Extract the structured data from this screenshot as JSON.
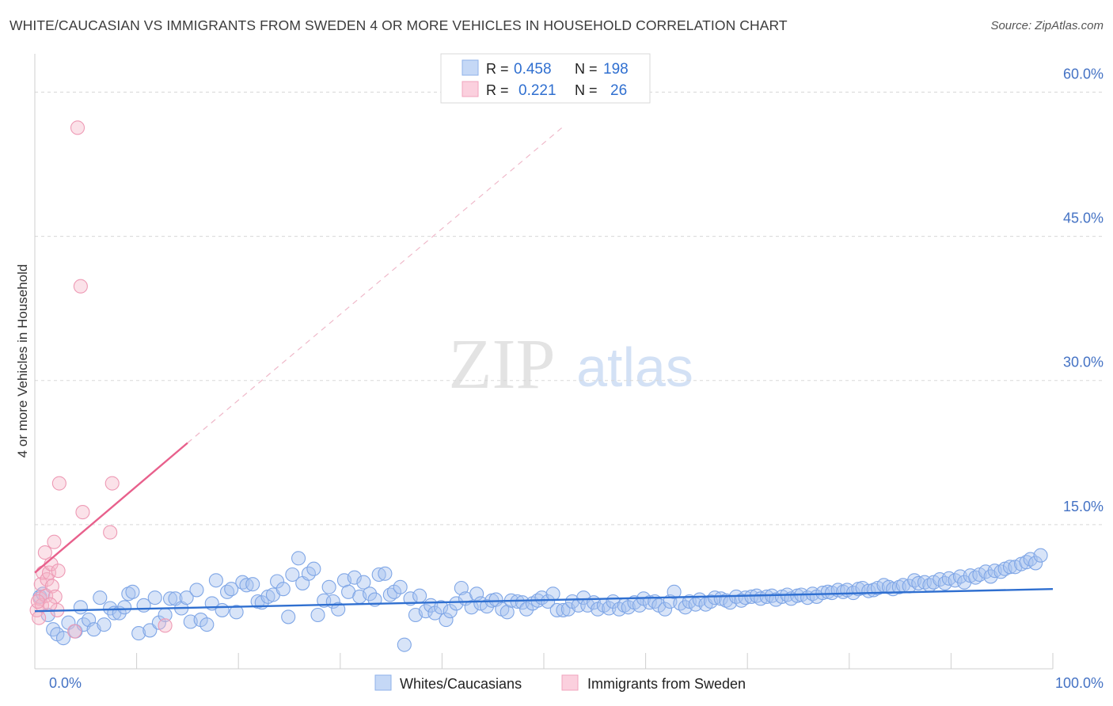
{
  "header": {
    "title": "WHITE/CAUCASIAN VS IMMIGRANTS FROM SWEDEN 4 OR MORE VEHICLES IN HOUSEHOLD CORRELATION CHART",
    "source": "Source: ZipAtlas.com"
  },
  "watermark": {
    "zip": "ZIP",
    "atlas": "atlas"
  },
  "legend": {
    "rows": [
      {
        "r_label": "R =",
        "r_value": "0.458",
        "n_label": "N =",
        "n_value": "198",
        "color": "#a9c4f0"
      },
      {
        "r_label": "R =",
        "r_value": "0.221",
        "n_label": "N =",
        "n_value": "26",
        "color": "#f6b6c8"
      }
    ]
  },
  "bottom_legend": {
    "items": [
      {
        "label": "Whites/Caucasians",
        "color": "#a9c4f0"
      },
      {
        "label": "Immigrants from Sweden",
        "color": "#f6b6c8"
      }
    ]
  },
  "chart_data": {
    "type": "scatter",
    "title": "WHITE/CAUCASIAN VS IMMIGRANTS FROM SWEDEN 4 OR MORE VEHICLES IN HOUSEHOLD CORRELATION CHART",
    "xlabel": "",
    "ylabel": "4 or more Vehicles in Household",
    "xlim": [
      0,
      100
    ],
    "ylim": [
      0,
      63
    ],
    "x_tick_labels": [
      "0.0%",
      "100.0%"
    ],
    "y_ticks": [
      15,
      30,
      45,
      60
    ],
    "y_tick_labels": [
      "15.0%",
      "30.0%",
      "45.0%",
      "60.0%"
    ],
    "grid": true,
    "legend_position": "top-center",
    "series": [
      {
        "name": "Whites/Caucasians",
        "color": "#8fb2ea",
        "line_color": "#2f6fd0",
        "trend": {
          "x": [
            0,
            100
          ],
          "y": [
            6.0,
            8.3
          ]
        },
        "points": [
          [
            0.5,
            7.5
          ],
          [
            0.8,
            7.8
          ],
          [
            1.3,
            5.6
          ],
          [
            1.8,
            4.1
          ],
          [
            2.2,
            3.6
          ],
          [
            2.8,
            3.2
          ],
          [
            3.3,
            4.8
          ],
          [
            4.0,
            3.9
          ],
          [
            4.5,
            6.4
          ],
          [
            4.8,
            4.6
          ],
          [
            5.3,
            5.1
          ],
          [
            5.8,
            4.1
          ],
          [
            6.4,
            7.4
          ],
          [
            6.8,
            4.6
          ],
          [
            7.4,
            6.3
          ],
          [
            7.8,
            5.8
          ],
          [
            8.3,
            5.8
          ],
          [
            8.8,
            6.4
          ],
          [
            9.2,
            7.8
          ],
          [
            9.6,
            8.0
          ],
          [
            10.2,
            3.7
          ],
          [
            10.7,
            6.6
          ],
          [
            11.3,
            4.0
          ],
          [
            11.8,
            7.4
          ],
          [
            12.2,
            4.8
          ],
          [
            12.8,
            5.6
          ],
          [
            13.3,
            7.3
          ],
          [
            13.8,
            7.3
          ],
          [
            14.4,
            6.3
          ],
          [
            14.9,
            7.4
          ],
          [
            15.3,
            4.9
          ],
          [
            15.9,
            8.2
          ],
          [
            16.3,
            5.1
          ],
          [
            16.9,
            4.6
          ],
          [
            17.4,
            6.8
          ],
          [
            17.8,
            9.2
          ],
          [
            18.4,
            6.1
          ],
          [
            18.9,
            8.0
          ],
          [
            19.3,
            8.3
          ],
          [
            19.8,
            5.9
          ],
          [
            20.4,
            9.0
          ],
          [
            20.8,
            8.7
          ],
          [
            21.4,
            8.8
          ],
          [
            21.9,
            7.0
          ],
          [
            22.3,
            6.9
          ],
          [
            22.9,
            7.5
          ],
          [
            23.4,
            7.7
          ],
          [
            23.8,
            9.1
          ],
          [
            24.4,
            8.3
          ],
          [
            24.9,
            5.4
          ],
          [
            25.3,
            9.8
          ],
          [
            25.9,
            11.5
          ],
          [
            26.3,
            8.9
          ],
          [
            26.9,
            9.9
          ],
          [
            27.4,
            10.4
          ],
          [
            27.8,
            5.6
          ],
          [
            28.4,
            7.1
          ],
          [
            28.9,
            8.5
          ],
          [
            29.3,
            7.0
          ],
          [
            29.8,
            6.2
          ],
          [
            30.4,
            9.2
          ],
          [
            30.8,
            8.0
          ],
          [
            31.4,
            9.5
          ],
          [
            31.9,
            7.5
          ],
          [
            32.3,
            9.0
          ],
          [
            32.9,
            7.8
          ],
          [
            33.4,
            7.2
          ],
          [
            33.8,
            9.8
          ],
          [
            34.4,
            9.9
          ],
          [
            34.9,
            7.7
          ],
          [
            35.3,
            8.0
          ],
          [
            35.9,
            8.5
          ],
          [
            36.3,
            2.5
          ],
          [
            36.9,
            7.3
          ],
          [
            37.4,
            5.6
          ],
          [
            37.8,
            7.6
          ],
          [
            38.4,
            6.0
          ],
          [
            38.9,
            6.6
          ],
          [
            39.3,
            5.8
          ],
          [
            39.9,
            6.4
          ],
          [
            40.4,
            5.1
          ],
          [
            40.8,
            6.0
          ],
          [
            41.4,
            6.8
          ],
          [
            41.9,
            8.4
          ],
          [
            42.3,
            7.3
          ],
          [
            42.9,
            6.4
          ],
          [
            43.4,
            7.8
          ],
          [
            43.8,
            6.8
          ],
          [
            44.4,
            6.5
          ],
          [
            44.9,
            7.1
          ],
          [
            45.3,
            7.2
          ],
          [
            45.9,
            6.2
          ],
          [
            46.4,
            5.9
          ],
          [
            46.8,
            7.1
          ],
          [
            47.4,
            7.0
          ],
          [
            47.9,
            6.9
          ],
          [
            48.3,
            6.2
          ],
          [
            48.9,
            6.8
          ],
          [
            49.4,
            7.1
          ],
          [
            49.8,
            7.4
          ],
          [
            50.4,
            7.0
          ],
          [
            50.9,
            7.8
          ],
          [
            51.3,
            6.1
          ],
          [
            51.9,
            6.1
          ],
          [
            52.4,
            6.2
          ],
          [
            52.8,
            7.0
          ],
          [
            53.4,
            6.6
          ],
          [
            53.9,
            7.4
          ],
          [
            54.3,
            6.6
          ],
          [
            54.9,
            6.9
          ],
          [
            55.3,
            6.2
          ],
          [
            55.9,
            6.6
          ],
          [
            56.4,
            6.3
          ],
          [
            56.8,
            7.0
          ],
          [
            57.4,
            6.2
          ],
          [
            57.9,
            6.6
          ],
          [
            58.3,
            6.4
          ],
          [
            58.9,
            6.9
          ],
          [
            59.4,
            6.6
          ],
          [
            59.8,
            7.3
          ],
          [
            60.4,
            6.9
          ],
          [
            60.9,
            7.0
          ],
          [
            61.3,
            6.6
          ],
          [
            61.9,
            6.2
          ],
          [
            62.4,
            7.0
          ],
          [
            62.8,
            8.0
          ],
          [
            63.4,
            6.8
          ],
          [
            63.9,
            6.4
          ],
          [
            64.3,
            7.0
          ],
          [
            64.9,
            6.7
          ],
          [
            65.3,
            7.2
          ],
          [
            65.9,
            6.7
          ],
          [
            66.4,
            7.0
          ],
          [
            66.8,
            7.4
          ],
          [
            67.4,
            7.3
          ],
          [
            67.9,
            7.1
          ],
          [
            68.3,
            6.9
          ],
          [
            68.9,
            7.5
          ],
          [
            69.4,
            7.1
          ],
          [
            69.8,
            7.4
          ],
          [
            70.4,
            7.5
          ],
          [
            70.9,
            7.6
          ],
          [
            71.3,
            7.3
          ],
          [
            71.9,
            7.5
          ],
          [
            72.4,
            7.6
          ],
          [
            72.8,
            7.2
          ],
          [
            73.4,
            7.5
          ],
          [
            73.9,
            7.7
          ],
          [
            74.3,
            7.3
          ],
          [
            74.9,
            7.6
          ],
          [
            75.3,
            7.7
          ],
          [
            75.9,
            7.4
          ],
          [
            76.4,
            7.8
          ],
          [
            76.8,
            7.5
          ],
          [
            77.4,
            7.9
          ],
          [
            77.9,
            8.0
          ],
          [
            78.3,
            7.9
          ],
          [
            78.9,
            8.2
          ],
          [
            79.4,
            8.0
          ],
          [
            79.8,
            8.2
          ],
          [
            80.4,
            7.9
          ],
          [
            80.9,
            8.3
          ],
          [
            81.3,
            8.4
          ],
          [
            81.9,
            8.1
          ],
          [
            82.4,
            8.2
          ],
          [
            82.8,
            8.4
          ],
          [
            83.4,
            8.7
          ],
          [
            83.9,
            8.5
          ],
          [
            84.3,
            8.3
          ],
          [
            84.9,
            8.5
          ],
          [
            85.3,
            8.7
          ],
          [
            85.9,
            8.6
          ],
          [
            86.4,
            9.2
          ],
          [
            86.8,
            8.9
          ],
          [
            87.4,
            9.0
          ],
          [
            87.9,
            8.7
          ],
          [
            88.3,
            9.0
          ],
          [
            88.9,
            9.3
          ],
          [
            89.4,
            8.9
          ],
          [
            89.8,
            9.4
          ],
          [
            90.4,
            9.2
          ],
          [
            90.9,
            9.6
          ],
          [
            91.3,
            9.0
          ],
          [
            91.9,
            9.7
          ],
          [
            92.4,
            9.5
          ],
          [
            92.8,
            9.8
          ],
          [
            93.4,
            10.1
          ],
          [
            93.9,
            9.6
          ],
          [
            94.3,
            10.2
          ],
          [
            94.9,
            10.1
          ],
          [
            95.3,
            10.4
          ],
          [
            95.8,
            10.6
          ],
          [
            96.3,
            10.6
          ],
          [
            96.9,
            10.9
          ],
          [
            97.4,
            11.1
          ],
          [
            97.8,
            11.4
          ],
          [
            98.3,
            11.0
          ],
          [
            98.8,
            11.8
          ]
        ]
      },
      {
        "name": "Immigrants from Sweden",
        "color": "#f2a3bd",
        "line_color": "#e8608c",
        "trend": {
          "x": [
            0,
            15
          ],
          "y": [
            10.0,
            23.5
          ]
        },
        "trend_extension": {
          "x": [
            15,
            52
          ],
          "y": [
            23.5,
            56.5
          ]
        },
        "points": [
          [
            0.2,
            6.1
          ],
          [
            0.4,
            5.3
          ],
          [
            0.5,
            7.3
          ],
          [
            0.6,
            8.8
          ],
          [
            0.7,
            6.6
          ],
          [
            0.8,
            10.0
          ],
          [
            1.0,
            12.1
          ],
          [
            1.1,
            7.6
          ],
          [
            1.2,
            9.3
          ],
          [
            1.4,
            10.0
          ],
          [
            1.6,
            10.9
          ],
          [
            1.7,
            8.6
          ],
          [
            1.9,
            13.2
          ],
          [
            2.0,
            7.5
          ],
          [
            2.2,
            6.1
          ],
          [
            2.3,
            10.2
          ],
          [
            2.4,
            19.3
          ],
          [
            3.9,
            3.9
          ],
          [
            4.2,
            56.3
          ],
          [
            4.5,
            39.8
          ],
          [
            4.7,
            16.3
          ],
          [
            7.4,
            14.2
          ],
          [
            7.6,
            19.3
          ],
          [
            12.8,
            4.5
          ],
          [
            0.3,
            7.0
          ],
          [
            1.5,
            6.7
          ]
        ]
      }
    ]
  }
}
